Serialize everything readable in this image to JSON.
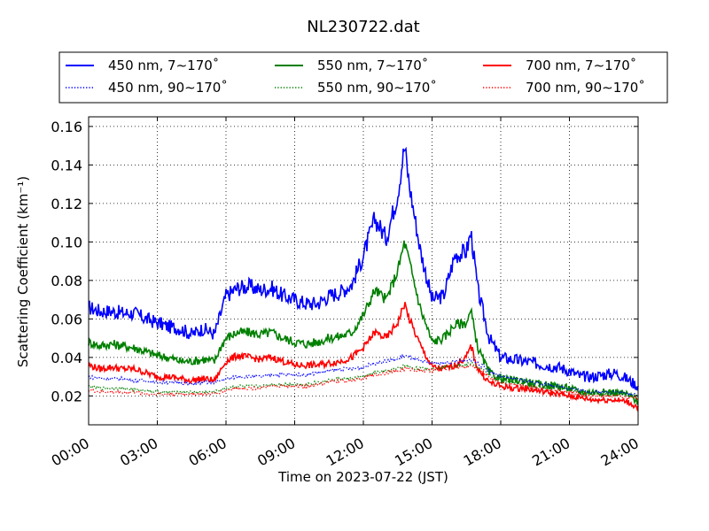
{
  "chart_data": {
    "type": "line",
    "title": "NL230722.dat",
    "xlabel": "Time on 2023-07-22 (JST)",
    "ylabel": "Scattering Coefficient (km⁻¹)",
    "xlim": [
      0,
      24
    ],
    "ylim": [
      0.005,
      0.165
    ],
    "xticks": [
      0,
      3,
      6,
      9,
      12,
      15,
      18,
      21,
      24
    ],
    "xtick_labels": [
      "00:00",
      "03:00",
      "06:00",
      "09:00",
      "12:00",
      "15:00",
      "18:00",
      "21:00",
      "24:00"
    ],
    "yticks": [
      0.02,
      0.04,
      0.06,
      0.08,
      0.1,
      0.12,
      0.14,
      0.16
    ],
    "ytick_labels": [
      "0.02",
      "0.04",
      "0.06",
      "0.08",
      "0.10",
      "0.12",
      "0.14",
      "0.16"
    ],
    "grid": true,
    "legend_position": "top",
    "x": [
      0,
      0.5,
      1,
      1.5,
      2,
      2.5,
      3,
      3.5,
      4,
      4.5,
      5,
      5.5,
      5.75,
      6,
      6.5,
      7,
      7.5,
      8,
      8.5,
      9,
      9.5,
      10,
      10.5,
      11,
      11.5,
      12,
      12.5,
      13,
      13.5,
      13.8,
      14,
      14.5,
      15,
      15.5,
      16,
      16.5,
      16.7,
      17,
      17.5,
      18,
      18.5,
      19,
      19.5,
      20,
      20.5,
      21,
      21.5,
      22,
      22.5,
      23,
      23.5,
      24
    ],
    "series": [
      {
        "name": "450 nm, 7∼170˚",
        "color": "#0000ff",
        "style": "solid",
        "values": [
          0.066,
          0.064,
          0.064,
          0.063,
          0.063,
          0.06,
          0.058,
          0.056,
          0.055,
          0.052,
          0.055,
          0.052,
          0.062,
          0.072,
          0.076,
          0.077,
          0.075,
          0.076,
          0.072,
          0.07,
          0.068,
          0.068,
          0.072,
          0.074,
          0.078,
          0.093,
          0.112,
          0.102,
          0.125,
          0.15,
          0.13,
          0.095,
          0.07,
          0.072,
          0.093,
          0.095,
          0.105,
          0.075,
          0.05,
          0.04,
          0.039,
          0.038,
          0.037,
          0.036,
          0.035,
          0.033,
          0.03,
          0.03,
          0.031,
          0.032,
          0.029,
          0.025
        ]
      },
      {
        "name": "550 nm, 7∼170˚",
        "color": "#008000",
        "style": "solid",
        "values": [
          0.048,
          0.046,
          0.047,
          0.046,
          0.045,
          0.043,
          0.041,
          0.04,
          0.038,
          0.038,
          0.039,
          0.038,
          0.045,
          0.05,
          0.053,
          0.053,
          0.052,
          0.053,
          0.05,
          0.048,
          0.047,
          0.048,
          0.05,
          0.051,
          0.053,
          0.062,
          0.075,
          0.07,
          0.085,
          0.1,
          0.09,
          0.065,
          0.048,
          0.05,
          0.057,
          0.058,
          0.064,
          0.045,
          0.032,
          0.029,
          0.028,
          0.028,
          0.026,
          0.026,
          0.025,
          0.024,
          0.022,
          0.022,
          0.022,
          0.022,
          0.021,
          0.017
        ]
      },
      {
        "name": "700 nm, 7∼170˚",
        "color": "#ff0000",
        "style": "solid",
        "values": [
          0.036,
          0.034,
          0.035,
          0.034,
          0.034,
          0.032,
          0.03,
          0.03,
          0.029,
          0.028,
          0.029,
          0.028,
          0.033,
          0.038,
          0.041,
          0.04,
          0.039,
          0.04,
          0.038,
          0.036,
          0.036,
          0.036,
          0.037,
          0.038,
          0.04,
          0.045,
          0.053,
          0.05,
          0.058,
          0.068,
          0.06,
          0.046,
          0.035,
          0.034,
          0.036,
          0.04,
          0.046,
          0.034,
          0.027,
          0.025,
          0.024,
          0.024,
          0.023,
          0.022,
          0.021,
          0.02,
          0.019,
          0.018,
          0.018,
          0.018,
          0.017,
          0.014
        ]
      },
      {
        "name": "450 nm, 90∼170˚",
        "color": "#0000ff",
        "style": "dotted",
        "values": [
          0.03,
          0.029,
          0.029,
          0.029,
          0.028,
          0.028,
          0.027,
          0.027,
          0.027,
          0.026,
          0.027,
          0.027,
          0.028,
          0.029,
          0.03,
          0.03,
          0.03,
          0.031,
          0.031,
          0.031,
          0.031,
          0.032,
          0.033,
          0.034,
          0.034,
          0.035,
          0.037,
          0.038,
          0.039,
          0.041,
          0.04,
          0.038,
          0.037,
          0.037,
          0.038,
          0.038,
          0.039,
          0.037,
          0.033,
          0.03,
          0.029,
          0.028,
          0.027,
          0.026,
          0.025,
          0.024,
          0.023,
          0.022,
          0.022,
          0.022,
          0.021,
          0.021
        ]
      },
      {
        "name": "550 nm, 90∼170˚",
        "color": "#008000",
        "style": "dotted",
        "values": [
          0.025,
          0.024,
          0.024,
          0.024,
          0.023,
          0.023,
          0.022,
          0.022,
          0.022,
          0.022,
          0.022,
          0.022,
          0.023,
          0.024,
          0.025,
          0.025,
          0.025,
          0.026,
          0.026,
          0.026,
          0.026,
          0.027,
          0.028,
          0.029,
          0.029,
          0.03,
          0.032,
          0.033,
          0.034,
          0.036,
          0.035,
          0.034,
          0.034,
          0.035,
          0.036,
          0.036,
          0.037,
          0.035,
          0.031,
          0.028,
          0.027,
          0.026,
          0.025,
          0.024,
          0.024,
          0.023,
          0.022,
          0.021,
          0.021,
          0.021,
          0.02,
          0.02
        ]
      },
      {
        "name": "700 nm, 90∼170˚",
        "color": "#ff0000",
        "style": "dotted",
        "values": [
          0.023,
          0.022,
          0.022,
          0.022,
          0.022,
          0.021,
          0.021,
          0.021,
          0.021,
          0.021,
          0.021,
          0.021,
          0.022,
          0.023,
          0.024,
          0.024,
          0.024,
          0.025,
          0.025,
          0.025,
          0.025,
          0.026,
          0.027,
          0.028,
          0.028,
          0.029,
          0.031,
          0.032,
          0.033,
          0.034,
          0.034,
          0.033,
          0.033,
          0.034,
          0.035,
          0.035,
          0.036,
          0.034,
          0.03,
          0.027,
          0.026,
          0.025,
          0.024,
          0.023,
          0.023,
          0.022,
          0.021,
          0.02,
          0.02,
          0.02,
          0.019,
          0.019
        ]
      }
    ]
  }
}
